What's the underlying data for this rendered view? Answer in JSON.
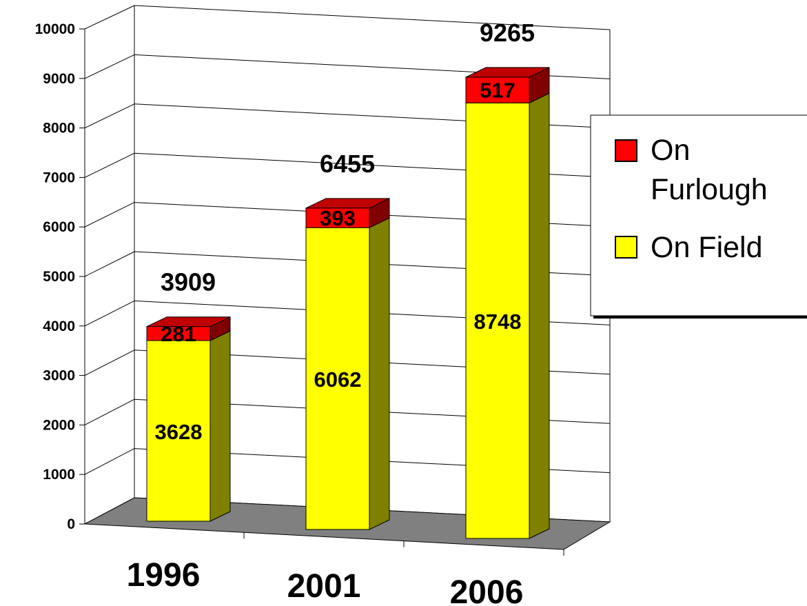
{
  "chart_data": {
    "type": "bar",
    "stacked": true,
    "three_d": true,
    "categories": [
      "1996",
      "2001",
      "2006"
    ],
    "series": [
      {
        "name": "On Field",
        "values": [
          3628,
          6062,
          8748
        ],
        "color": "#ffff00",
        "side_color": "#808000"
      },
      {
        "name": "On Furlough",
        "values": [
          281,
          393,
          517
        ],
        "color": "#ff0000",
        "side_color": "#800000"
      }
    ],
    "totals": [
      "3909",
      "6455",
      "9265"
    ],
    "ylim": [
      0,
      10000
    ],
    "yticks": [
      "0",
      "1000",
      "2000",
      "3000",
      "4000",
      "5000",
      "6000",
      "7000",
      "8000",
      "9000",
      "10000"
    ],
    "grid": true,
    "legend": {
      "placement": "right",
      "entries": [
        {
          "label_lines": [
            "On",
            "Furlough"
          ],
          "color": "#ff0000"
        },
        {
          "label_lines": [
            "On Field"
          ],
          "color": "#ffff00"
        }
      ]
    },
    "floor_color": "#808080"
  }
}
